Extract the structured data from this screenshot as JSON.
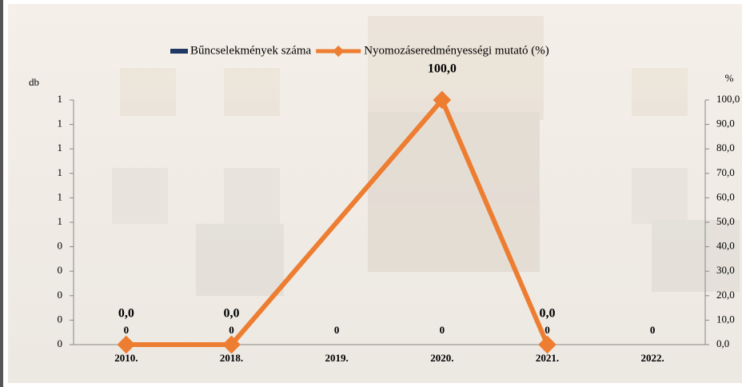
{
  "chart_data": {
    "type": "bar_line",
    "categories": [
      "2010.",
      "2018.",
      "2019.",
      "2020.",
      "2021.",
      "2022."
    ],
    "y_axis_title": "db",
    "y2_axis_title": "%",
    "series": [
      {
        "name": "Bűncselekmények száma",
        "type": "bar",
        "color": "#1f3864",
        "values": [
          0,
          0,
          0,
          0,
          0,
          0
        ]
      },
      {
        "name": "Nyomozáseredményességi mutató (%)",
        "type": "line",
        "axis": "y2",
        "color": "#ed7d31",
        "span_gaps": true,
        "values": [
          0,
          0,
          null,
          100,
          0,
          null
        ],
        "value_labels": [
          "0,0",
          "0,0",
          null,
          "100,0",
          "0,0",
          null
        ]
      }
    ],
    "ylim": [
      0,
      1
    ],
    "yticks": [
      {
        "value": 0,
        "label": "0"
      },
      {
        "value": 0.1,
        "label": "0"
      },
      {
        "value": 0.2,
        "label": "0"
      },
      {
        "value": 0.3,
        "label": "0"
      },
      {
        "value": 0.4,
        "label": "0"
      },
      {
        "value": 0.5,
        "label": "1"
      },
      {
        "value": 0.6,
        "label": "1"
      },
      {
        "value": 0.7,
        "label": "1"
      },
      {
        "value": 0.8,
        "label": "1"
      },
      {
        "value": 0.9,
        "label": "1"
      },
      {
        "value": 1,
        "label": "1"
      }
    ],
    "y2lim": [
      0,
      100
    ],
    "y2ticks": [
      {
        "value": 0,
        "label": "0,0"
      },
      {
        "value": 10,
        "label": "10,0"
      },
      {
        "value": 20,
        "label": "20,0"
      },
      {
        "value": 30,
        "label": "30,0"
      },
      {
        "value": 40,
        "label": "40,0"
      },
      {
        "value": 50,
        "label": "50,0"
      },
      {
        "value": 60,
        "label": "60,0"
      },
      {
        "value": 70,
        "label": "70,0"
      },
      {
        "value": 80,
        "label": "80,0"
      },
      {
        "value": 90,
        "label": "90,0"
      },
      {
        "value": 100,
        "label": "100,0"
      }
    ],
    "legend": "top"
  }
}
